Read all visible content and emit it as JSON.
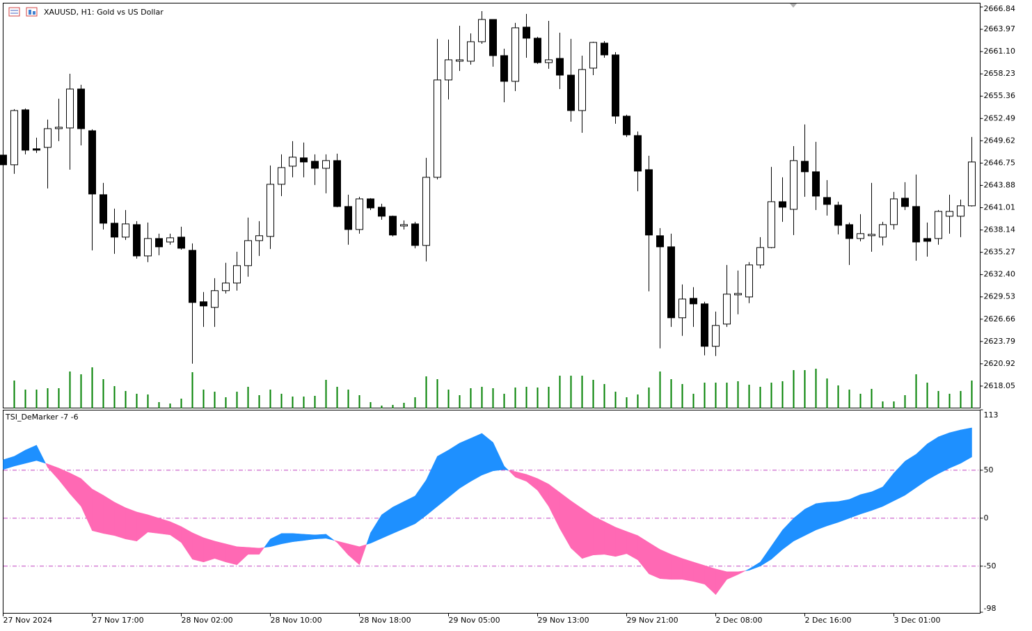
{
  "chart_data": [
    {
      "type": "candlestick",
      "title": "XAUUSD, H1:  Gold vs US Dollar",
      "categories": [
        "27 Nov 2024",
        null,
        null,
        null,
        null,
        null,
        null,
        null,
        "27 Nov 17:00",
        null,
        null,
        null,
        null,
        null,
        null,
        null,
        "28 Nov 02:00",
        null,
        null,
        null,
        null,
        null,
        null,
        null,
        "28 Nov 10:00",
        null,
        null,
        null,
        null,
        null,
        null,
        null,
        "28 Nov 18:00",
        null,
        null,
        null,
        null,
        null,
        null,
        null,
        "29 Nov 05:00",
        null,
        null,
        null,
        null,
        null,
        null,
        null,
        "29 Nov 13:00",
        null,
        null,
        null,
        null,
        null,
        null,
        null,
        "29 Nov 21:00",
        null,
        null,
        null,
        null,
        null,
        null,
        null,
        "2 Dec 08:00",
        null,
        null,
        null,
        null,
        null,
        null,
        null,
        "2 Dec 16:00",
        null,
        null,
        null,
        null,
        null,
        null,
        null,
        "3 Dec 01:00",
        null,
        null,
        null,
        null,
        null,
        null,
        null
      ],
      "open": [
        2647.78,
        2646.53,
        2653.6,
        2648.59,
        2648.77,
        2651.18,
        2651.27,
        2656.28,
        2650.91,
        2642.68,
        2639.01,
        2637.22,
        2638.83,
        2634.8,
        2637.04,
        2636.59,
        2637.22,
        2635.52,
        2628.9,
        2628.18,
        2630.33,
        2631.31,
        2633.55,
        2636.77,
        2637.31,
        2644.02,
        2646.35,
        2647.42,
        2646.98,
        2646.08,
        2647.07,
        2641.16,
        2638.2,
        2642.14,
        2641.07,
        2639.91,
        2638.65,
        2638.92,
        2636.15,
        2644.92,
        2657.45,
        2659.86,
        2659.86,
        2662.37,
        2665.23,
        2660.58,
        2657.27,
        2664.25,
        2662.82,
        2659.68,
        2660.22,
        2658.07,
        2653.51,
        2658.97,
        2662.19,
        2660.67,
        2652.79,
        2650.29,
        2645.9,
        2637.4,
        2635.97,
        2626.84,
        2629.34,
        2628.63,
        2623.17,
        2626.03,
        2629.79,
        2629.52,
        2633.64,
        2635.88,
        2641.78,
        2640.8,
        2646.98,
        2645.63,
        2642.32,
        2641.34,
        2638.83,
        2637.04,
        2637.4,
        2637.22,
        2638.83,
        2642.23,
        2641.16,
        2637.04,
        2637.04,
        2639.91,
        2639.91,
        2641.25
      ],
      "high": [
        2648.5,
        2653.69,
        2653.78,
        2650.02,
        2652.35,
        2655.03,
        2658.25,
        2656.82,
        2651.09,
        2644.2,
        2640.89,
        2640.71,
        2639.28,
        2639.1,
        2637.67,
        2637.67,
        2638.56,
        2636.41,
        2630.15,
        2631.94,
        2633.91,
        2635.34,
        2639.73,
        2639.28,
        2646.44,
        2647.87,
        2649.57,
        2649.39,
        2647.87,
        2647.87,
        2647.96,
        2642.68,
        2642.41,
        2642.23,
        2641.52,
        2639.99,
        2639.37,
        2639.19,
        2647.42,
        2662.73,
        2662.64,
        2664.43,
        2663.44,
        2666.31,
        2665.23,
        2661.47,
        2664.79,
        2665.95,
        2663.0,
        2665.05,
        2663.53,
        2662.73,
        2660.58,
        2662.37,
        2662.46,
        2661.03,
        2652.97,
        2650.82,
        2647.69,
        2638.38,
        2637.67,
        2631.13,
        2630.78,
        2628.9,
        2627.64,
        2633.64,
        2632.92,
        2634.0,
        2637.22,
        2646.26,
        2644.92,
        2648.94,
        2651.72,
        2649.48,
        2644.56,
        2641.78,
        2639.1,
        2640.17,
        2644.2,
        2639.19,
        2643.04,
        2644.29,
        2645.28,
        2639.1,
        2640.71,
        2642.68,
        2642.05,
        2650.11
      ],
      "low": [
        2646.26,
        2645.36,
        2647.87,
        2648.05,
        2643.49,
        2649.57,
        2645.9,
        2649.03,
        2635.52,
        2638.2,
        2635.07,
        2636.86,
        2634.45,
        2634.0,
        2634.89,
        2636.24,
        2635.61,
        2620.93,
        2625.67,
        2625.67,
        2629.97,
        2630.33,
        2632.12,
        2634.8,
        2635.7,
        2642.5,
        2644.92,
        2644.92,
        2643.93,
        2642.86,
        2641.07,
        2636.24,
        2637.67,
        2640.71,
        2639.46,
        2637.31,
        2638.2,
        2635.79,
        2634.09,
        2644.65,
        2654.94,
        2658.61,
        2659.42,
        2662.1,
        2659.15,
        2654.58,
        2656.02,
        2660.31,
        2659.51,
        2658.88,
        2656.28,
        2652.08,
        2650.65,
        2658.07,
        2660.31,
        2651.81,
        2650.11,
        2643.13,
        2630.24,
        2622.9,
        2625.67,
        2624.51,
        2625.67,
        2622.01,
        2621.92,
        2625.67,
        2627.29,
        2628.72,
        2633.19,
        2635.79,
        2639.19,
        2637.49,
        2642.41,
        2640.71,
        2639.99,
        2637.58,
        2633.64,
        2636.68,
        2635.34,
        2636.15,
        2638.2,
        2640.71,
        2634.18,
        2634.71,
        2636.24,
        2637.67,
        2637.22,
        2641.16
      ],
      "close": [
        2646.53,
        2653.51,
        2648.41,
        2648.41,
        2651.18,
        2651.36,
        2656.28,
        2651.18,
        2642.77,
        2639.01,
        2637.22,
        2638.92,
        2634.8,
        2637.04,
        2635.97,
        2637.13,
        2635.79,
        2628.81,
        2628.36,
        2630.33,
        2631.31,
        2633.55,
        2636.77,
        2637.4,
        2644.02,
        2646.17,
        2647.51,
        2646.89,
        2646.08,
        2647.07,
        2641.16,
        2638.2,
        2642.14,
        2640.98,
        2639.91,
        2637.49,
        2638.83,
        2636.15,
        2644.92,
        2657.45,
        2660.04,
        2660.04,
        2662.37,
        2665.23,
        2660.58,
        2657.27,
        2664.16,
        2662.82,
        2659.68,
        2660.04,
        2658.07,
        2653.51,
        2658.79,
        2662.28,
        2660.67,
        2652.79,
        2650.38,
        2645.72,
        2637.49,
        2635.97,
        2626.84,
        2629.25,
        2628.63,
        2623.17,
        2625.85,
        2629.88,
        2629.97,
        2633.64,
        2635.88,
        2641.78,
        2641.07,
        2647.07,
        2645.63,
        2642.5,
        2641.43,
        2638.74,
        2637.04,
        2637.67,
        2637.58,
        2638.83,
        2642.14,
        2641.16,
        2636.59,
        2636.68,
        2640.53,
        2640.53,
        2641.25,
        2646.89
      ],
      "up_color": "#ffffff",
      "down_color": "#000000",
      "volume": [
        null,
        40,
        27,
        27,
        29,
        29,
        53,
        49,
        59,
        42,
        32,
        25,
        21,
        20,
        9,
        7,
        14,
        52,
        27,
        24,
        16,
        24,
        31,
        19,
        27,
        21,
        17,
        17,
        18,
        41,
        31,
        27,
        19,
        9,
        4,
        5,
        8,
        16,
        46,
        42,
        27,
        19,
        29,
        31,
        29,
        21,
        30,
        31,
        30,
        31,
        47,
        47,
        47,
        41,
        35,
        24,
        16,
        20,
        30,
        53,
        42,
        35,
        21,
        37,
        37,
        37,
        39,
        34,
        31,
        37,
        39,
        55,
        55,
        57,
        43,
        33,
        27,
        21,
        28,
        10,
        10,
        19,
        49,
        37,
        25,
        21,
        25,
        40
      ],
      "volume_color": "#008000",
      "ylim": [
        2615.18,
        2667.29
      ],
      "yticks": [
        2666.84,
        2663.97,
        {
          "value": 2661.1,
          "label": "2661.10"
        },
        2658.23,
        2655.36,
        2652.49,
        2649.62,
        2646.75,
        2643.88,
        2641.01,
        2638.14,
        2635.27,
        {
          "value": 2632.4,
          "label": "2632.40"
        },
        2629.53,
        2626.66,
        2623.79,
        2620.92,
        2618.05
      ]
    },
    {
      "type": "band",
      "title": "TSI_DeMarker -7 -6",
      "series": [
        {
          "color": "#1e90ff",
          "values": [
            60.9,
            64.5,
            71.0,
            76.1,
            52.9,
            39.9,
            25.4,
            12.3,
            -13.0,
            -15.9,
            -18.1,
            -21.7,
            -23.9,
            -14.5,
            -15.9,
            -17.4,
            -25.4,
            -42.8,
            -45.7,
            -42.0,
            -45.7,
            -48.6,
            -37.7,
            -37.7,
            -21.7,
            -15.9,
            -15.9,
            -16.7,
            -17.4,
            -16.7,
            -25.4,
            -38.4,
            -48.6,
            -15.2,
            3.6,
            11.6,
            17.4,
            23.2,
            39.9,
            64.5,
            71.0,
            78.3,
            83.3,
            88.4,
            79.0,
            54.3,
            42.8,
            38.4,
            29.0,
            12.3,
            -10.9,
            -31.2,
            -42.0,
            -38.4,
            -37.7,
            -39.9,
            -37.0,
            -43.5,
            -58.0,
            -63.0,
            -63.8,
            -63.8,
            -65.9,
            -68.8,
            -79.7,
            -63.8,
            -58.7,
            -52.9,
            -45.7,
            -29.0,
            -12.3,
            0,
            9.4,
            15.2,
            16.7,
            17.4,
            19.6,
            24.6,
            27.5,
            32.6,
            47.1,
            59.4,
            66.7,
            77.5,
            84.8,
            89.1,
            92.0,
            94.2
          ]
        },
        {
          "color": "#ff69b4",
          "values": [
            50.7,
            54.3,
            57.2,
            60.1,
            56.5,
            52.2,
            47.1,
            41.3,
            30.4,
            23.9,
            16.7,
            10.9,
            6.5,
            3.6,
            0,
            -3.6,
            -8.7,
            -15.2,
            -20.3,
            -23.9,
            -26.8,
            -29.7,
            -30.4,
            -31.2,
            -29.7,
            -26.8,
            -24.6,
            -23.2,
            -21.7,
            -21.0,
            -23.9,
            -26.8,
            -29.7,
            -26.1,
            -21.0,
            -15.9,
            -10.9,
            -5.8,
            2.9,
            12.3,
            21.7,
            31.2,
            38.4,
            44.9,
            49.3,
            50.7,
            48.6,
            45.7,
            41.3,
            35.5,
            26.8,
            18.1,
            10.1,
            2.2,
            -3.6,
            -9.4,
            -13.8,
            -18.1,
            -25.4,
            -32.6,
            -37.7,
            -42.0,
            -45.7,
            -49.3,
            -52.9,
            -55.8,
            -55.8,
            -54.3,
            -50.0,
            -42.8,
            -32.6,
            -23.9,
            -18.1,
            -12.3,
            -8.0,
            -4.3,
            0,
            4.3,
            8.0,
            12.3,
            18.1,
            23.9,
            31.9,
            39.9,
            46.4,
            52.2,
            57.2,
            63.8
          ]
        }
      ],
      "level_color": "#c040c0",
      "ylim": [
        -98,
        113
      ],
      "yticks": [
        -98,
        -50,
        0,
        50,
        113
      ]
    }
  ]
}
